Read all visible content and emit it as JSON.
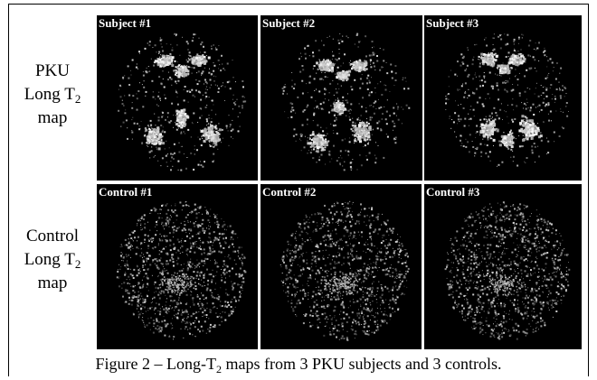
{
  "figure": {
    "row_labels": [
      {
        "line1": "PKU",
        "line2_main": "Long T",
        "line2_sub": "2",
        "line3": "map"
      },
      {
        "line1": "Control",
        "line2_main": "Long T",
        "line2_sub": "2",
        "line3": "map"
      }
    ],
    "panels": [
      {
        "title": "Subject #1",
        "type": "pku"
      },
      {
        "title": "Subject #2",
        "type": "pku"
      },
      {
        "title": "Subject #3",
        "type": "pku"
      },
      {
        "title": "Control #1",
        "type": "control"
      },
      {
        "title": "Control #2",
        "type": "control"
      },
      {
        "title": "Control #3",
        "type": "control"
      }
    ],
    "caption": {
      "prefix": "Figure 2 – Long-T",
      "sub": "2",
      "suffix": " maps from 3 PKU subjects and 3 controls."
    }
  }
}
